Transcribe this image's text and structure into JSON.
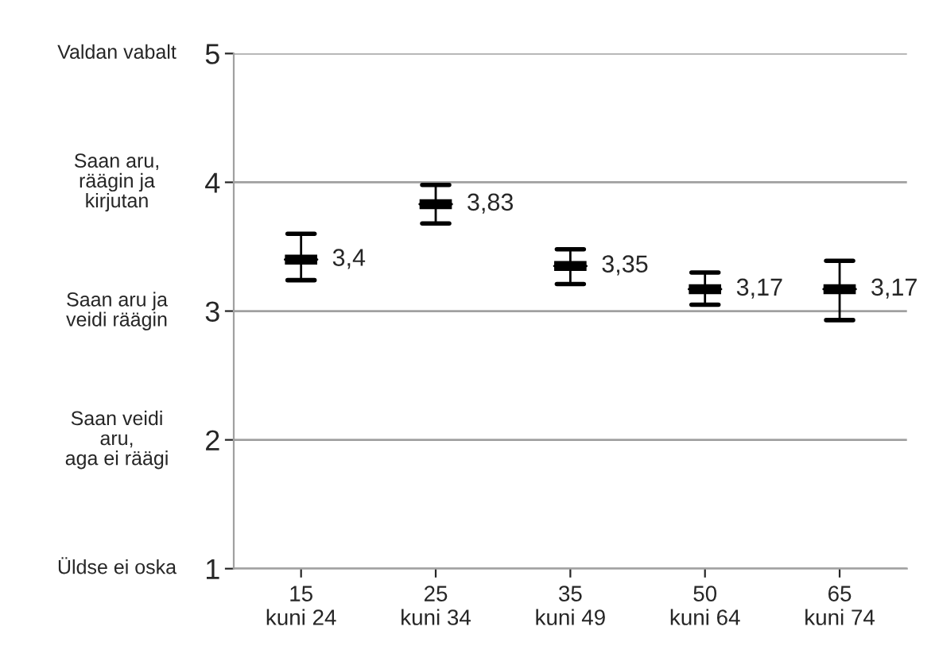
{
  "chart_data": {
    "type": "box",
    "categories": [
      "15\nkuni 24",
      "25\nkuni 34",
      "35\nkuni 49",
      "50\nkuni 64",
      "65\nkuni 74"
    ],
    "ylim": [
      1,
      5
    ],
    "yticks": [
      1,
      2,
      3,
      4,
      5
    ],
    "grid": "y",
    "series": [
      {
        "color": "#000000",
        "boxes": [
          {
            "low": 3.24,
            "q1": 3.4,
            "median": 3.4,
            "q3": 3.4,
            "high": 3.6
          },
          {
            "low": 3.68,
            "q1": 3.83,
            "median": 3.83,
            "q3": 3.83,
            "high": 3.98
          },
          {
            "low": 3.21,
            "q1": 3.35,
            "median": 3.35,
            "q3": 3.35,
            "high": 3.48
          },
          {
            "low": 3.05,
            "q1": 3.17,
            "median": 3.17,
            "q3": 3.17,
            "high": 3.3
          },
          {
            "low": 2.93,
            "q1": 3.17,
            "median": 3.17,
            "q3": 3.17,
            "high": 3.39
          }
        ],
        "value_labels": [
          "3,4",
          "3,83",
          "3,35",
          "3,17",
          "3,17"
        ]
      }
    ],
    "annotations": [
      "Üldse ei oska",
      "Saan veidi\naru,\naga ei räägi",
      "Saan aru ja\nveidi räägin",
      "Saan aru,\nräägin ja\nkirjutan",
      "Valdan vabalt"
    ]
  }
}
